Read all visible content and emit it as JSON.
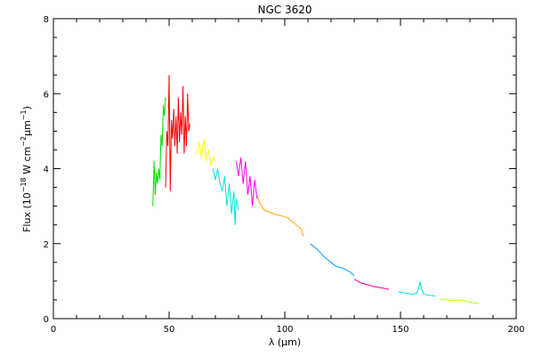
{
  "chart_data": {
    "type": "line",
    "title": "NGC 3620",
    "xlabel": "λ (μm)",
    "ylabel": {
      "prefix": "Flux (10",
      "exp1": "−18",
      "mid1": " W cm",
      "exp2": "−2",
      "mid2": "μm",
      "exp3": "−1",
      "suffix": ")"
    },
    "xlim": [
      0,
      200
    ],
    "ylim": [
      0,
      8
    ],
    "xticks": [
      0,
      50,
      100,
      150,
      200
    ],
    "yticks": [
      0,
      2,
      4,
      6,
      8
    ],
    "grid": false,
    "series": [
      {
        "color": "#00e000",
        "points": [
          [
            43,
            3.0
          ],
          [
            43.5,
            4.2
          ],
          [
            44,
            3.3
          ],
          [
            44.5,
            3.9
          ],
          [
            45,
            3.6
          ],
          [
            45.5,
            4.0
          ],
          [
            46,
            3.7
          ],
          [
            46.5,
            4.9
          ],
          [
            47,
            4.6
          ],
          [
            47.5,
            5.7
          ],
          [
            48,
            5.4
          ],
          [
            48.5,
            5.9
          ]
        ]
      },
      {
        "color": "#ff0000",
        "points": [
          [
            48.5,
            3.5
          ],
          [
            49,
            5.0
          ],
          [
            49.5,
            4.6
          ],
          [
            50,
            6.5
          ],
          [
            50.5,
            3.4
          ],
          [
            51,
            5.3
          ],
          [
            51.5,
            4.8
          ],
          [
            52,
            5.6
          ],
          [
            52.5,
            4.6
          ],
          [
            53,
            5.4
          ],
          [
            53.5,
            4.4
          ],
          [
            54,
            5.9
          ],
          [
            54.5,
            4.7
          ],
          [
            55,
            5.5
          ],
          [
            55.5,
            4.9
          ],
          [
            56,
            6.2
          ],
          [
            56.5,
            4.4
          ],
          [
            57,
            5.4
          ],
          [
            57.5,
            4.6
          ],
          [
            58,
            6.0
          ],
          [
            58.5,
            5.0
          ],
          [
            59,
            5.2
          ]
        ]
      },
      {
        "color": "#ffff00",
        "points": [
          [
            62,
            4.4
          ],
          [
            63,
            4.7
          ],
          [
            64,
            4.3
          ],
          [
            65,
            4.8
          ],
          [
            66,
            4.2
          ],
          [
            67,
            4.5
          ],
          [
            68,
            4.1
          ],
          [
            69,
            4.3
          ],
          [
            70,
            4.2
          ]
        ]
      },
      {
        "color": "#00e0e0",
        "points": [
          [
            69,
            4.0
          ],
          [
            70,
            3.7
          ],
          [
            71,
            4.0
          ],
          [
            72,
            3.6
          ],
          [
            73,
            3.4
          ],
          [
            74,
            3.8
          ],
          [
            75,
            3.0
          ],
          [
            76,
            3.6
          ],
          [
            77,
            2.8
          ],
          [
            78,
            3.4
          ],
          [
            78.5,
            2.5
          ],
          [
            79,
            3.2
          ],
          [
            80,
            2.9
          ]
        ]
      },
      {
        "color": "#ff00ff",
        "points": [
          [
            79,
            4.2
          ],
          [
            80,
            3.8
          ],
          [
            81,
            4.3
          ],
          [
            82,
            3.6
          ],
          [
            83,
            4.2
          ],
          [
            84,
            3.3
          ],
          [
            85,
            3.8
          ],
          [
            86,
            3.0
          ],
          [
            87,
            3.7
          ],
          [
            88,
            3.2
          ]
        ]
      },
      {
        "color": "#ffa500",
        "points": [
          [
            88,
            3.3
          ],
          [
            89,
            3.1
          ],
          [
            90,
            3.0
          ],
          [
            91,
            2.9
          ],
          [
            93,
            2.85
          ],
          [
            95,
            2.8
          ],
          [
            98,
            2.75
          ],
          [
            101,
            2.7
          ],
          [
            104,
            2.55
          ],
          [
            107,
            2.4
          ],
          [
            108,
            2.2
          ]
        ]
      },
      {
        "color": "#00a0ff",
        "points": [
          [
            111,
            2.0
          ],
          [
            114,
            1.85
          ],
          [
            117,
            1.65
          ],
          [
            120,
            1.5
          ],
          [
            122,
            1.4
          ],
          [
            125,
            1.35
          ],
          [
            128,
            1.25
          ],
          [
            130,
            1.15
          ]
        ]
      },
      {
        "color": "#ff0090",
        "points": [
          [
            130,
            1.05
          ],
          [
            133,
            0.95
          ],
          [
            136,
            0.9
          ],
          [
            139,
            0.85
          ],
          [
            142,
            0.82
          ],
          [
            145,
            0.78
          ]
        ]
      },
      {
        "color": "#00e0e0",
        "points": [
          [
            149,
            0.72
          ],
          [
            152,
            0.68
          ],
          [
            155,
            0.65
          ],
          [
            157,
            0.68
          ],
          [
            158,
            0.85
          ],
          [
            158.5,
            0.98
          ],
          [
            159,
            0.8
          ],
          [
            160,
            0.65
          ],
          [
            163,
            0.62
          ],
          [
            165,
            0.6
          ]
        ]
      },
      {
        "color": "#c0ff00",
        "points": [
          [
            167,
            0.52
          ],
          [
            170,
            0.5
          ],
          [
            173,
            0.48
          ],
          [
            176,
            0.5
          ],
          [
            179,
            0.45
          ],
          [
            182,
            0.42
          ],
          [
            184,
            0.4
          ]
        ]
      }
    ]
  }
}
